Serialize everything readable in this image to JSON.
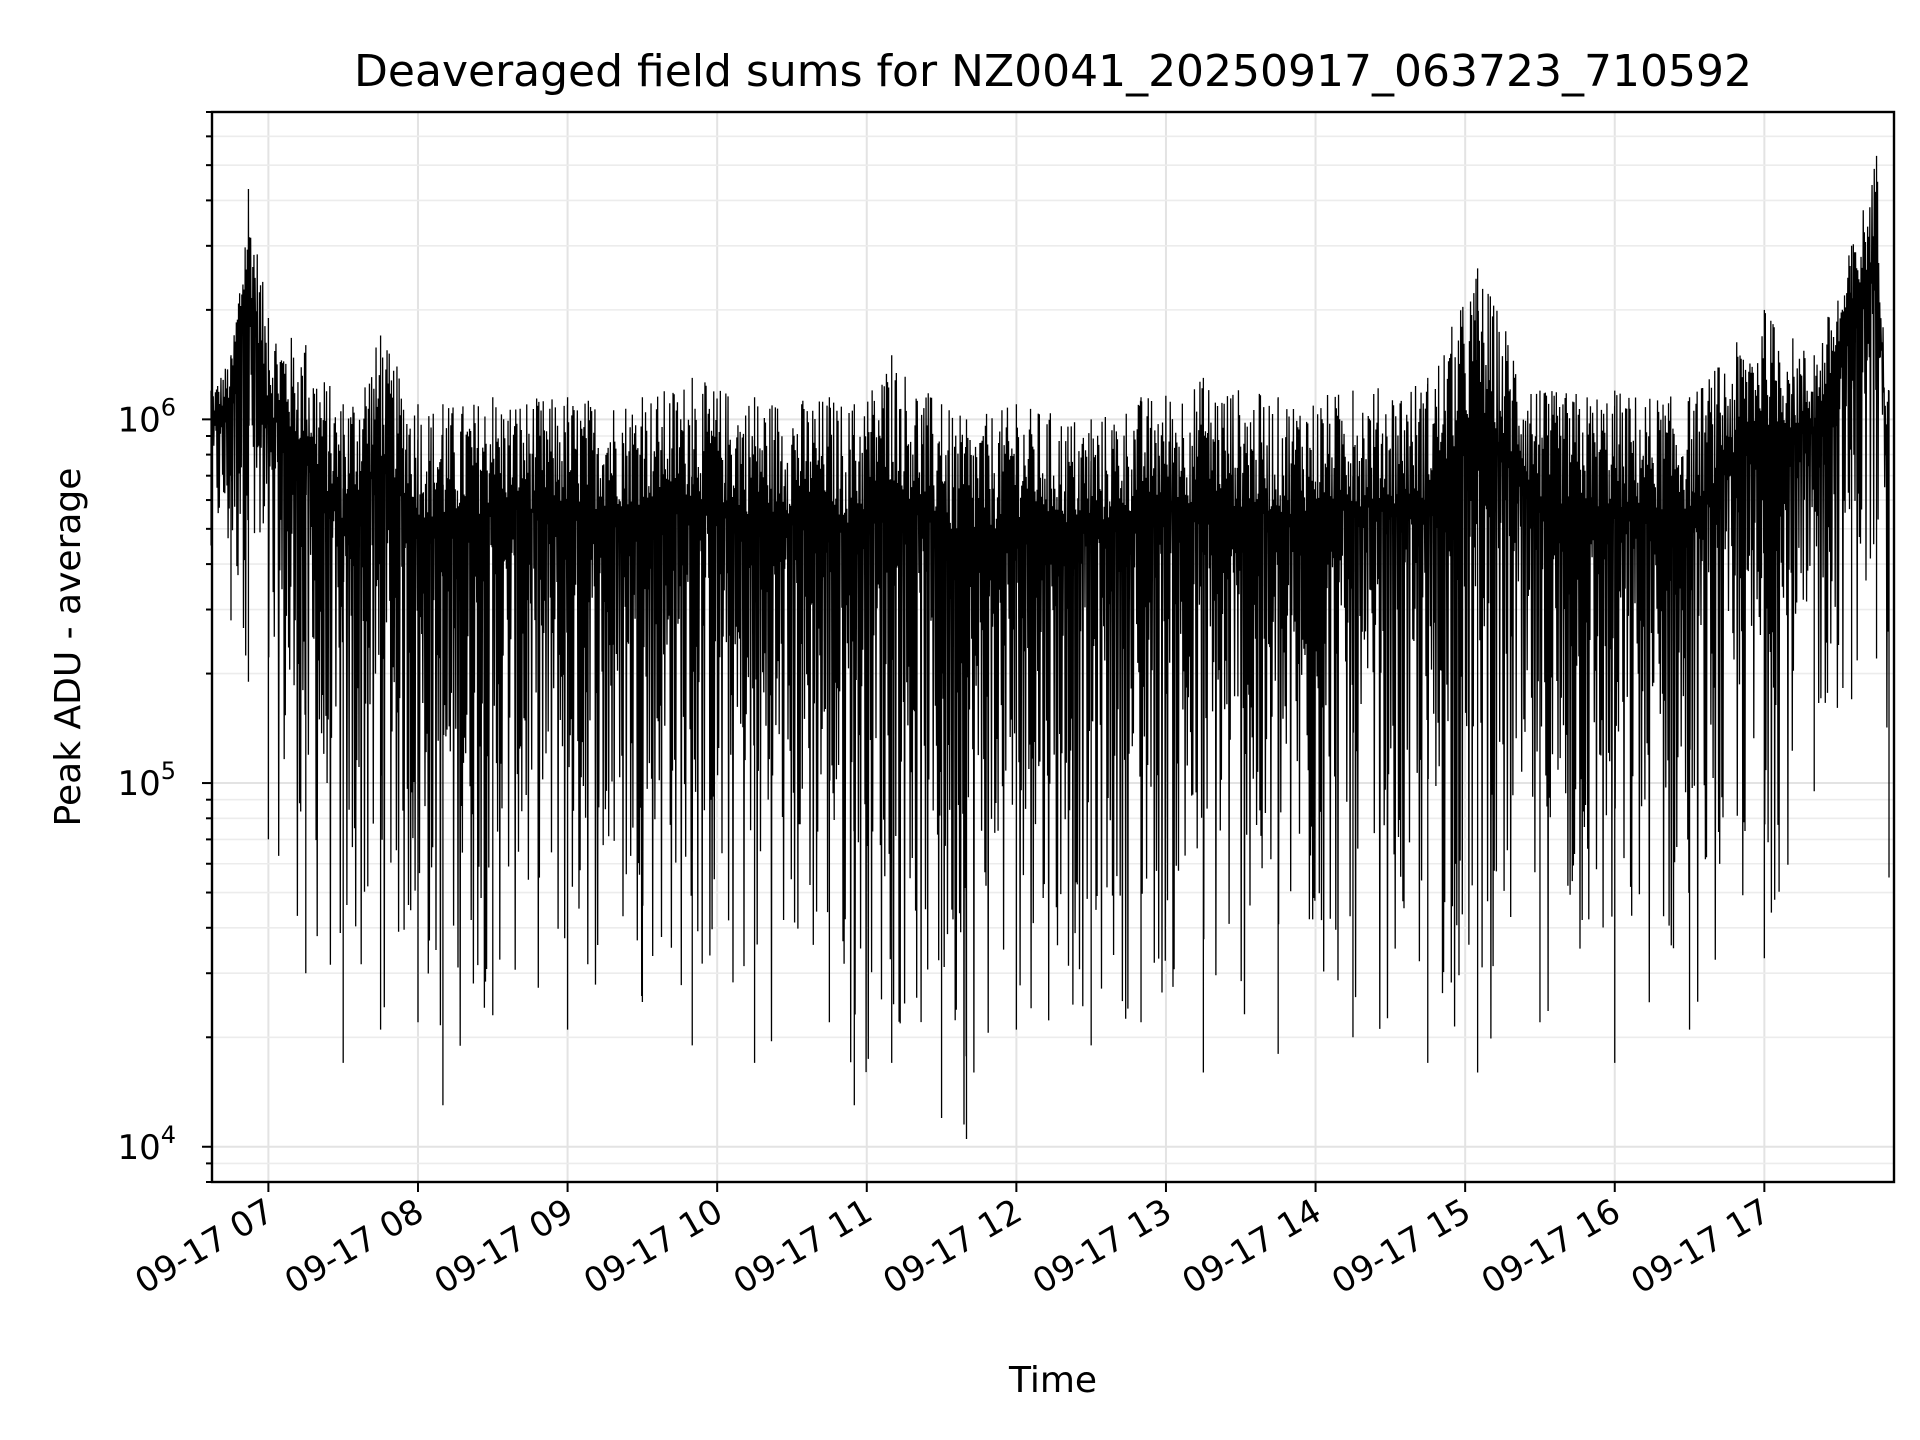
{
  "chart_data": {
    "type": "line",
    "title": "Deaveraged field sums for NZ0041_20250917_063723_710592",
    "xlabel": "Time",
    "ylabel": "Peak ADU - average",
    "yscale": "log",
    "ylim": [
      8000,
      7000000
    ],
    "xlim": [
      "2025-09-17 06:37:23",
      "2025-09-17 17:52:00"
    ],
    "x_ticks": [
      {
        "label": "09-17 07",
        "t": "2025-09-17 07:00"
      },
      {
        "label": "09-17 08",
        "t": "2025-09-17 08:00"
      },
      {
        "label": "09-17 09",
        "t": "2025-09-17 09:00"
      },
      {
        "label": "09-17 10",
        "t": "2025-09-17 10:00"
      },
      {
        "label": "09-17 11",
        "t": "2025-09-17 11:00"
      },
      {
        "label": "09-17 12",
        "t": "2025-09-17 12:00"
      },
      {
        "label": "09-17 13",
        "t": "2025-09-17 13:00"
      },
      {
        "label": "09-17 14",
        "t": "2025-09-17 14:00"
      },
      {
        "label": "09-17 15",
        "t": "2025-09-17 15:00"
      },
      {
        "label": "09-17 16",
        "t": "2025-09-17 16:00"
      },
      {
        "label": "09-17 17",
        "t": "2025-09-17 17:00"
      }
    ],
    "y_ticks": [
      {
        "base": "10",
        "exp": "4",
        "value": 10000
      },
      {
        "base": "10",
        "exp": "5",
        "value": 100000
      },
      {
        "base": "10",
        "exp": "6",
        "value": 1000000
      }
    ],
    "grid": true,
    "series_color": "#000000",
    "envelope": [
      {
        "t": "2025-09-17 06:37",
        "max": 1200000,
        "min": 450000
      },
      {
        "t": "2025-09-17 06:45",
        "max": 1500000,
        "min": 280000
      },
      {
        "t": "2025-09-17 06:52",
        "max": 4300000,
        "min": 190000
      },
      {
        "t": "2025-09-17 07:00",
        "max": 1900000,
        "min": 70000
      },
      {
        "t": "2025-09-17 07:15",
        "max": 1600000,
        "min": 30000
      },
      {
        "t": "2025-09-17 07:30",
        "max": 1100000,
        "min": 17000
      },
      {
        "t": "2025-09-17 07:45",
        "max": 1700000,
        "min": 21000
      },
      {
        "t": "2025-09-17 08:00",
        "max": 1100000,
        "min": 22000
      },
      {
        "t": "2025-09-17 08:10",
        "max": 1100000,
        "min": 13000
      },
      {
        "t": "2025-09-17 08:30",
        "max": 1150000,
        "min": 23000
      },
      {
        "t": "2025-09-17 09:00",
        "max": 1150000,
        "min": 21000
      },
      {
        "t": "2025-09-17 09:30",
        "max": 1150000,
        "min": 25000
      },
      {
        "t": "2025-09-17 09:50",
        "max": 1300000,
        "min": 19000
      },
      {
        "t": "2025-09-17 10:15",
        "max": 1150000,
        "min": 17000
      },
      {
        "t": "2025-09-17 10:45",
        "max": 1150000,
        "min": 22000
      },
      {
        "t": "2025-09-17 10:55",
        "max": 1100000,
        "min": 13000
      },
      {
        "t": "2025-09-17 11:10",
        "max": 1500000,
        "min": 17000
      },
      {
        "t": "2025-09-17 11:30",
        "max": 1100000,
        "min": 12000
      },
      {
        "t": "2025-09-17 11:40",
        "max": 1000000,
        "min": 10500
      },
      {
        "t": "2025-09-17 12:00",
        "max": 1100000,
        "min": 21000
      },
      {
        "t": "2025-09-17 12:30",
        "max": 1000000,
        "min": 19000
      },
      {
        "t": "2025-09-17 12:50",
        "max": 1150000,
        "min": 22000
      },
      {
        "t": "2025-09-17 13:15",
        "max": 1300000,
        "min": 16000
      },
      {
        "t": "2025-09-17 13:45",
        "max": 1150000,
        "min": 18000
      },
      {
        "t": "2025-09-17 14:15",
        "max": 1200000,
        "min": 20000
      },
      {
        "t": "2025-09-17 14:45",
        "max": 1300000,
        "min": 17000
      },
      {
        "t": "2025-09-17 15:05",
        "max": 2600000,
        "min": 16000
      },
      {
        "t": "2025-09-17 15:30",
        "max": 1200000,
        "min": 22000
      },
      {
        "t": "2025-09-17 16:00",
        "max": 1200000,
        "min": 17000
      },
      {
        "t": "2025-09-17 16:30",
        "max": 1150000,
        "min": 21000
      },
      {
        "t": "2025-09-17 17:00",
        "max": 2000000,
        "min": 33000
      },
      {
        "t": "2025-09-17 17:20",
        "max": 1500000,
        "min": 95000
      },
      {
        "t": "2025-09-17 17:35",
        "max": 3000000,
        "min": 170000
      },
      {
        "t": "2025-09-17 17:45",
        "max": 5300000,
        "min": 220000
      },
      {
        "t": "2025-09-17 17:50",
        "max": 1200000,
        "min": 55000
      }
    ]
  }
}
